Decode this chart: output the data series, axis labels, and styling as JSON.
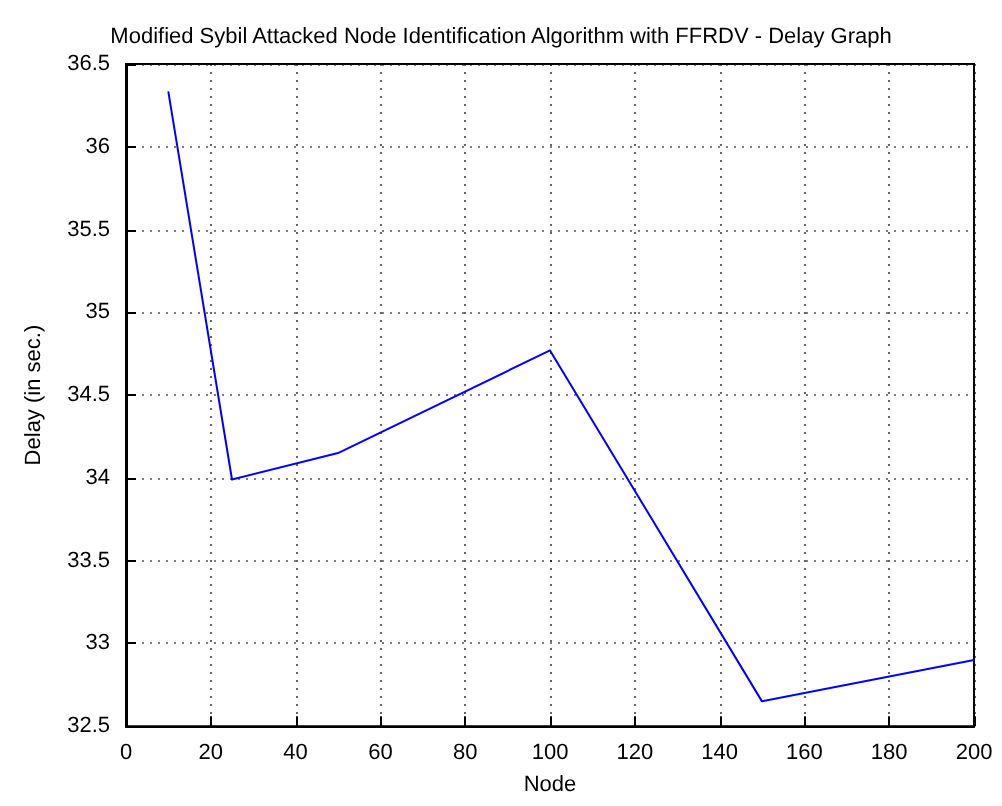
{
  "chart_data": {
    "type": "line",
    "title": "Modified Sybil Attacked Node Identification Algorithm with FFRDV - Delay Graph",
    "xlabel": "Node",
    "ylabel": "Delay (in sec.)",
    "x": [
      10,
      25,
      50,
      100,
      150,
      200
    ],
    "series": [
      {
        "color": "#0000ff",
        "values": [
          36.33,
          33.99,
          34.15,
          34.77,
          32.65,
          32.9
        ]
      }
    ],
    "xlim": [
      0,
      200
    ],
    "xticks": [
      0,
      20,
      40,
      60,
      80,
      100,
      120,
      140,
      160,
      180,
      200
    ],
    "ylim": [
      32.5,
      36.5
    ],
    "yticks": [
      32.5,
      33,
      33.5,
      34,
      34.5,
      35,
      35.5,
      36,
      36.5
    ],
    "grid": true,
    "marker": "none",
    "line_style": "solid"
  }
}
